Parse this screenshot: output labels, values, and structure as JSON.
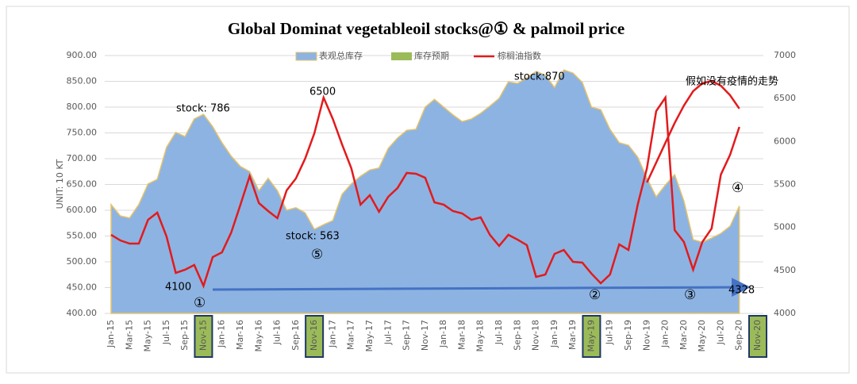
{
  "chart_data": {
    "type": "combo",
    "title": "Global Dominat vegetableoil stocks@① & palmoil price",
    "y_label": "UNIT: 10 KT",
    "categories": [
      "Jan-15",
      null,
      "Mar-15",
      null,
      "May-15",
      null,
      "Jul-15",
      null,
      "Sep-15",
      null,
      "Nov-15",
      null,
      "Jan-16",
      null,
      "Mar-16",
      null,
      "May-16",
      null,
      "Jul-16",
      null,
      "Sep-16",
      null,
      "Nov-16",
      null,
      "Jan-17",
      null,
      "Mar-17",
      null,
      "May-17",
      null,
      "Jul-17",
      null,
      "Sep-17",
      null,
      "Nov-17",
      null,
      "Jan-18",
      null,
      "Mar-18",
      null,
      "May-18",
      null,
      "Jul-18",
      null,
      "Sep-18",
      null,
      "Nov-18",
      null,
      "Jan-19",
      null,
      "Mar-19",
      null,
      "May-19",
      null,
      "Jul-19",
      null,
      "Sep-19",
      null,
      "Nov-19",
      null,
      "Jan-20",
      null,
      "Mar-20",
      null,
      "May-20",
      null,
      "Jul-20",
      null,
      "Sep-20",
      null,
      "Nov-20"
    ],
    "series": [
      {
        "name": "表观总库存",
        "type": "area",
        "color": "#8db3e2",
        "values": [
          611,
          589,
          585,
          611,
          651,
          660,
          722,
          751,
          743,
          777,
          786,
          762,
          731,
          705,
          685,
          675,
          638,
          662,
          638,
          600,
          605,
          595,
          563,
          572,
          580,
          631,
          651,
          666,
          678,
          682,
          720,
          740,
          755,
          757,
          800,
          815,
          800,
          785,
          772,
          777,
          788,
          802,
          817,
          849,
          846,
          857,
          869,
          862,
          838,
          872,
          866,
          848,
          800,
          795,
          757,
          731,
          726,
          703,
          662,
          626,
          649,
          669,
          618,
          543,
          538,
          546,
          555,
          569,
          608,
          null,
          null
        ]
      },
      {
        "name": "棕榈油指数",
        "type": "line",
        "axis": "y2",
        "color": "#e31a1c",
        "values": [
          4914,
          4849,
          4812,
          4812,
          5089,
          5172,
          4895,
          4471,
          4508,
          4563,
          4320,
          4655,
          4710,
          4940,
          5265,
          5597,
          5283,
          5191,
          5108,
          5431,
          5569,
          5800,
          6095,
          6511,
          6262,
          5966,
          5689,
          5265,
          5375,
          5182,
          5357,
          5458,
          5634,
          5625,
          5578,
          5292,
          5265,
          5191,
          5163,
          5089,
          5117,
          4914,
          4785,
          4914,
          4858,
          4794,
          4425,
          4452,
          4692,
          4738,
          4600,
          4591,
          4462,
          4351,
          4452,
          4803,
          4738,
          5265,
          5689,
          6354,
          6511,
          4969,
          4831,
          4508,
          4831,
          4988,
          5615,
          5846,
          6169,
          null,
          null
        ]
      }
    ],
    "highlight": {
      "name": "库存预期",
      "color": "#9bbb59",
      "categories": [
        "Nov-15",
        "Nov-16",
        "May-19",
        "Nov-20"
      ]
    },
    "trend": {
      "text": "假如没有疫情的走势",
      "color": "#e31a1c",
      "values": [
        null,
        null,
        null,
        null,
        null,
        null,
        null,
        null,
        null,
        null,
        null,
        null,
        null,
        null,
        null,
        null,
        null,
        null,
        null,
        null,
        null,
        null,
        null,
        null,
        null,
        null,
        null,
        null,
        null,
        null,
        null,
        null,
        null,
        null,
        null,
        null,
        null,
        null,
        null,
        null,
        null,
        null,
        null,
        null,
        null,
        null,
        null,
        null,
        null,
        null,
        null,
        null,
        null,
        null,
        null,
        null,
        null,
        null,
        5523,
        5754,
        5985,
        6215,
        6418,
        6585,
        6677,
        6705,
        6649,
        6538,
        6382,
        null,
        null
      ]
    },
    "annotations": [
      "stock: 786",
      "stock: 563",
      "stock:870",
      "6500",
      "4100",
      "4328",
      "①",
      "⑤",
      "②",
      "③",
      "④"
    ],
    "ylim": [
      400,
      900
    ],
    "yticks": [
      {
        "value": 400,
        "label": "400.00"
      },
      {
        "value": 450,
        "label": "450.00"
      },
      {
        "value": 500,
        "label": "500.00"
      },
      {
        "value": 550,
        "label": "550.00"
      },
      {
        "value": 600,
        "label": "600.00"
      },
      {
        "value": 650,
        "label": "650.00"
      },
      {
        "value": 700,
        "label": "700.00"
      },
      {
        "value": 750,
        "label": "750.00"
      },
      {
        "value": 800,
        "label": "800.00"
      },
      {
        "value": 850,
        "label": "850.00"
      },
      {
        "value": 900,
        "label": "900.00"
      }
    ],
    "y2lim": [
      4000,
      7000
    ],
    "y2ticks": [
      4000,
      4500,
      5000,
      5500,
      6000,
      6500,
      7000
    ],
    "grid": true
  }
}
